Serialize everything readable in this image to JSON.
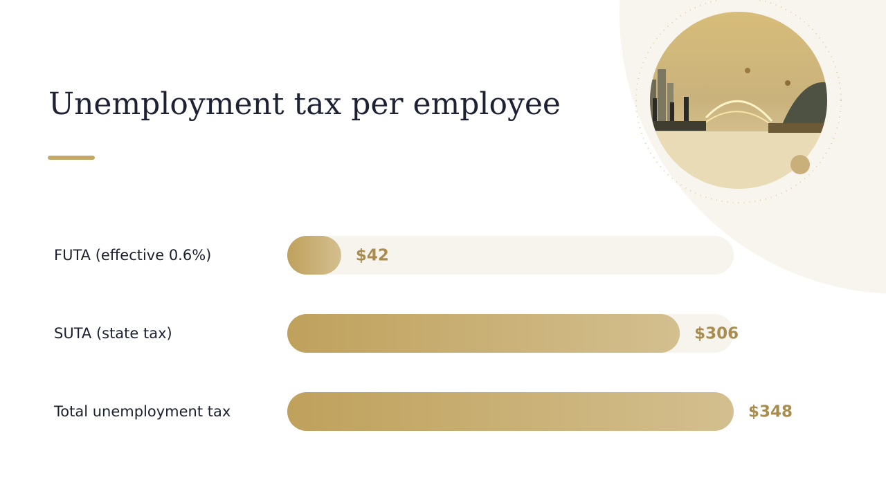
{
  "chart_data": {
    "type": "bar",
    "orientation": "horizontal",
    "title": "Unemployment tax per employee",
    "categories": [
      "FUTA (effective 0.6%)",
      "SUTA (state tax)",
      "Total unemployment tax"
    ],
    "values": [
      42,
      306,
      348
    ],
    "value_labels": [
      "$42",
      "$306",
      "$348"
    ],
    "color": "#c4a866"
  }
}
